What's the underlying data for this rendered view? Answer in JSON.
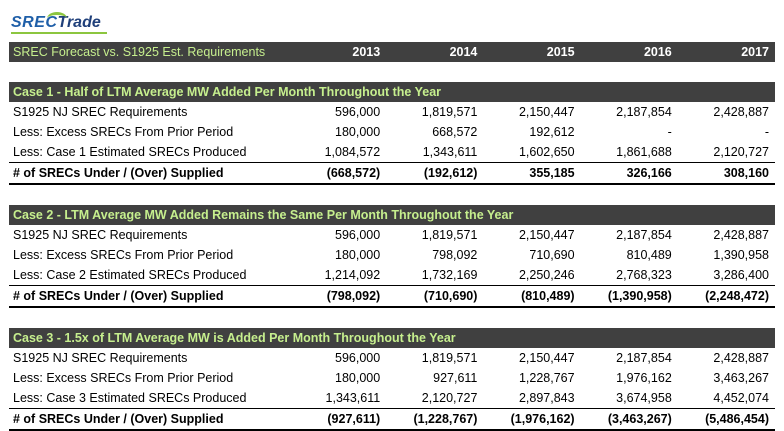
{
  "logo": {
    "part1": "SREC",
    "part2": "Trade"
  },
  "header": {
    "title": "SREC Forecast vs. S1925 Est. Requirements",
    "years": [
      "2013",
      "2014",
      "2015",
      "2016",
      "2017"
    ]
  },
  "cases": [
    {
      "title": "Case 1 - Half of LTM Average MW Added Per Month Throughout the Year",
      "rows": [
        {
          "label": "S1925 NJ SREC Requirements",
          "values": [
            "596,000",
            "1,819,571",
            "2,150,447",
            "2,187,854",
            "2,428,887"
          ]
        },
        {
          "label": "Less: Excess SRECs From Prior Period",
          "values": [
            "180,000",
            "668,572",
            "192,612",
            "-",
            "-"
          ]
        },
        {
          "label": "Less: Case 1 Estimated SRECs Produced",
          "values": [
            "1,084,572",
            "1,343,611",
            "1,602,650",
            "1,861,688",
            "2,120,727"
          ]
        }
      ],
      "total": {
        "label": "# of SRECs Under / (Over) Supplied",
        "values": [
          "(668,572)",
          "(192,612)",
          "355,185",
          "326,166",
          "308,160"
        ]
      }
    },
    {
      "title": "Case 2 - LTM Average MW Added Remains the Same Per Month Throughout the Year",
      "rows": [
        {
          "label": "S1925 NJ SREC Requirements",
          "values": [
            "596,000",
            "1,819,571",
            "2,150,447",
            "2,187,854",
            "2,428,887"
          ]
        },
        {
          "label": "Less: Excess SRECs From Prior Period",
          "values": [
            "180,000",
            "798,092",
            "710,690",
            "810,489",
            "1,390,958"
          ]
        },
        {
          "label": "Less: Case 2 Estimated SRECs Produced",
          "values": [
            "1,214,092",
            "1,732,169",
            "2,250,246",
            "2,768,323",
            "3,286,400"
          ]
        }
      ],
      "total": {
        "label": "# of SRECs Under / (Over) Supplied",
        "values": [
          "(798,092)",
          "(710,690)",
          "(810,489)",
          "(1,390,958)",
          "(2,248,472)"
        ]
      }
    },
    {
      "title": "Case 3 - 1.5x of LTM Average MW is Added Per Month Throughout the Year",
      "rows": [
        {
          "label": "S1925 NJ SREC Requirements",
          "values": [
            "596,000",
            "1,819,571",
            "2,150,447",
            "2,187,854",
            "2,428,887"
          ]
        },
        {
          "label": "Less: Excess SRECs From Prior Period",
          "values": [
            "180,000",
            "927,611",
            "1,228,767",
            "1,976,162",
            "3,463,267"
          ]
        },
        {
          "label": "Less: Case 3 Estimated SRECs Produced",
          "values": [
            "1,343,611",
            "2,120,727",
            "2,897,843",
            "3,674,958",
            "4,452,074"
          ]
        }
      ],
      "total": {
        "label": "# of SRECs Under / (Over) Supplied",
        "values": [
          "(927,611)",
          "(1,228,767)",
          "(1,976,162)",
          "(3,463,267)",
          "(5,486,454)"
        ]
      }
    }
  ],
  "colors": {
    "header_bg": "#404040",
    "case_title": "#c6ef8e",
    "logo_blue": "#1f5fa8",
    "logo_green": "#8cc63f"
  }
}
